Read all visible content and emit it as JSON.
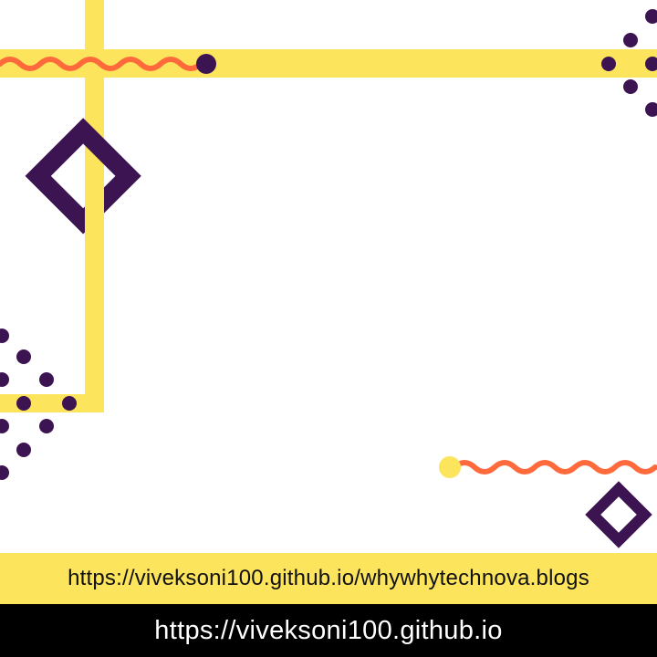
{
  "colors": {
    "yellow": "#FCE45C",
    "purple": "#3D1452",
    "orange": "#FF6A3D",
    "black": "#000000",
    "white": "#FFFFFF"
  },
  "footer": {
    "blog_url": "https://viveksoni100.github.io/whywhytechnova.blogs",
    "site_url": "https://viveksoni100.github.io"
  }
}
